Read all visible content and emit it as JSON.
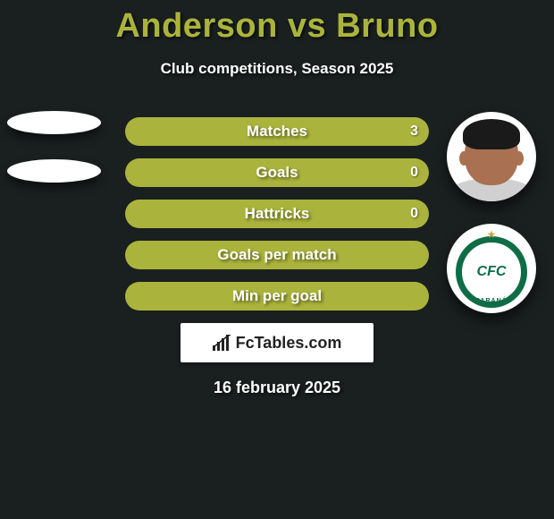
{
  "title": "Anderson vs Bruno",
  "subtitle": "Club competitions, Season 2025",
  "date_text": "16 february 2025",
  "logo_text": "FcTables.com",
  "colors": {
    "accent": "#aab43c",
    "background": "#1a1f1f",
    "text": "#ffffff",
    "crest_green": "#0f6d46"
  },
  "crest": {
    "top_text": "CORITIBA FOOT BALL CLUB",
    "bottom_text": "PARANÁ",
    "center_text": "CFC"
  },
  "stats": {
    "type": "comparison-bars",
    "bar_color": "#aab43c",
    "rows": [
      {
        "label": "Matches",
        "left": "",
        "right": "3",
        "left_width_pct": 0,
        "right_width_pct": 0
      },
      {
        "label": "Goals",
        "left": "",
        "right": "0",
        "left_width_pct": 0,
        "right_width_pct": 0
      },
      {
        "label": "Hattricks",
        "left": "",
        "right": "0",
        "left_width_pct": 0,
        "right_width_pct": 0
      },
      {
        "label": "Goals per match",
        "left": "",
        "right": "",
        "left_width_pct": 0,
        "right_width_pct": 0
      },
      {
        "label": "Min per goal",
        "left": "",
        "right": "",
        "left_width_pct": 0,
        "right_width_pct": 0
      }
    ]
  }
}
